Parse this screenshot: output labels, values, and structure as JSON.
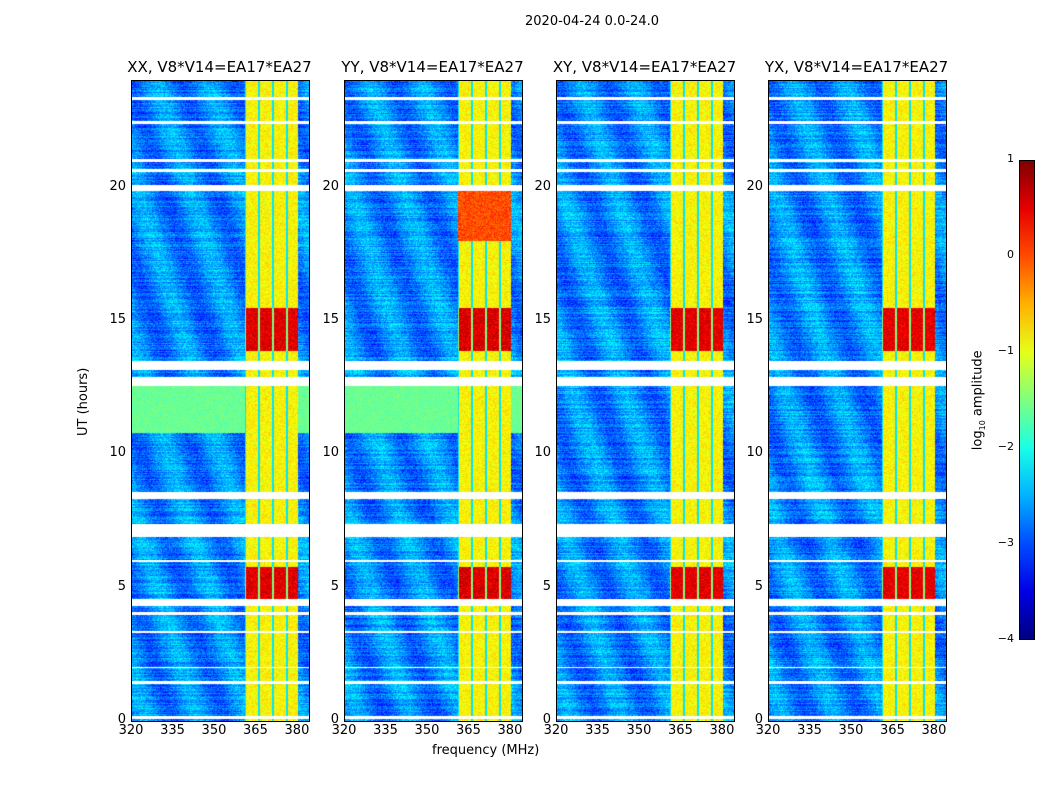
{
  "suptitle": "2020-04-24 0.0-24.0",
  "chart_data": {
    "type": "heatmap",
    "panels": [
      {
        "title": "XX, V8*V14=EA17*EA27"
      },
      {
        "title": "YY, V8*V14=EA17*EA27"
      },
      {
        "title": "XY, V8*V14=EA17*EA27"
      },
      {
        "title": "YX, V8*V14=EA17*EA27"
      }
    ],
    "xlabel": "frequency (MHz)",
    "ylabel": "UT (hours)",
    "xlim": [
      320,
      384
    ],
    "ylim": [
      0,
      24
    ],
    "xticks": [
      "320",
      "335",
      "350",
      "365",
      "380"
    ],
    "yticks": [
      "0",
      "5",
      "10",
      "15",
      "20"
    ],
    "colorbar": {
      "label": "log10 amplitude",
      "label_main": "log",
      "label_sub": "10",
      "label_rest": " amplitude",
      "range": [
        -4,
        1
      ],
      "ticks": [
        "1",
        "0",
        "−1",
        "−2",
        "−3",
        "−4"
      ],
      "colormap": "jet"
    },
    "rfi_band_mhz": [
      360.5,
      380
    ],
    "strong_rfi_hours": [
      [
        4.6,
        5.8
      ],
      [
        13.9,
        15.5
      ]
    ],
    "flagged_hours": [
      [
        0.1,
        0.2
      ],
      [
        1.4,
        1.5
      ],
      [
        2.0,
        2.05
      ],
      [
        3.3,
        3.4
      ],
      [
        4.0,
        4.1
      ],
      [
        4.35,
        4.6
      ],
      [
        6.0,
        6.05
      ],
      [
        6.9,
        7.4
      ],
      [
        8.35,
        8.6
      ],
      [
        12.6,
        12.9
      ],
      [
        13.2,
        13.5
      ],
      [
        19.9,
        20.1
      ],
      [
        20.6,
        20.7
      ],
      [
        21.0,
        21.1
      ],
      [
        22.4,
        22.5
      ],
      [
        23.3,
        23.4
      ]
    ],
    "smooth_band_hours": [
      10.8,
      12.6
    ]
  }
}
